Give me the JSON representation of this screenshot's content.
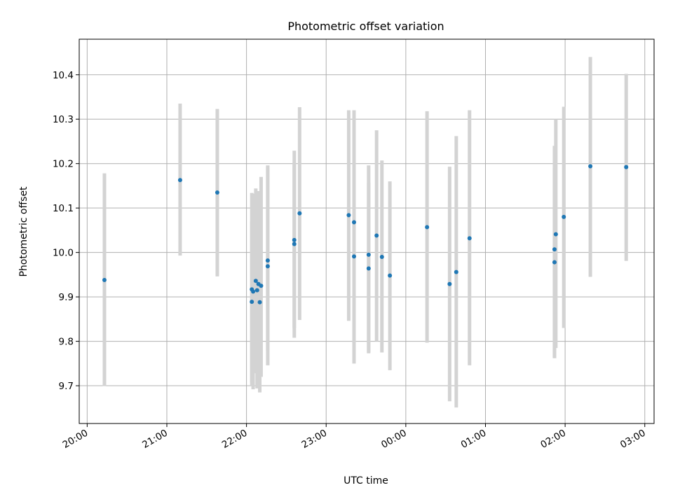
{
  "chart_data": {
    "type": "scatter",
    "title": "Photometric offset variation",
    "xlabel": "UTC time",
    "ylabel": "Photometric offset",
    "x_ticks": [
      "20:00",
      "21:00",
      "22:00",
      "23:00",
      "00:00",
      "01:00",
      "02:00",
      "03:00"
    ],
    "y_ticks": [
      "9.7",
      "9.8",
      "9.9",
      "10.0",
      "10.1",
      "10.2",
      "10.3",
      "10.4"
    ],
    "xlim": [
      "19:54",
      "03:07"
    ],
    "ylim": [
      9.615,
      10.48
    ],
    "grid": true,
    "colors": {
      "point": "#1f77b4",
      "errorbar": "#d3d3d3",
      "grid": "#b0b0b0"
    },
    "points": [
      {
        "x": "20:13",
        "y": 9.938,
        "lo": 9.699,
        "hi": 10.178
      },
      {
        "x": "21:10",
        "y": 10.163,
        "lo": 9.993,
        "hi": 10.335
      },
      {
        "x": "21:38",
        "y": 10.135,
        "lo": 9.946,
        "hi": 10.323
      },
      {
        "x": "22:04",
        "y": 9.889,
        "lo": 9.707,
        "hi": 10.07
      },
      {
        "x": "22:04",
        "y": 9.917,
        "lo": 9.7,
        "hi": 10.134
      },
      {
        "x": "22:05",
        "y": 9.912,
        "lo": 9.692,
        "hi": 10.132
      },
      {
        "x": "22:07",
        "y": 9.936,
        "lo": 9.728,
        "hi": 10.144
      },
      {
        "x": "22:08",
        "y": 9.915,
        "lo": 9.694,
        "hi": 10.136
      },
      {
        "x": "22:09",
        "y": 9.929,
        "lo": 9.72,
        "hi": 10.138
      },
      {
        "x": "22:10",
        "y": 9.888,
        "lo": 9.685,
        "hi": 10.091
      },
      {
        "x": "22:11",
        "y": 9.925,
        "lo": 9.72,
        "hi": 10.17
      },
      {
        "x": "22:16",
        "y": 9.982,
        "lo": 9.78,
        "hi": 10.196
      },
      {
        "x": "22:16",
        "y": 9.969,
        "lo": 9.746,
        "hi": 10.192
      },
      {
        "x": "22:36",
        "y": 10.028,
        "lo": 9.808,
        "hi": 10.229
      },
      {
        "x": "22:36",
        "y": 10.019,
        "lo": 9.83,
        "hi": 10.2
      },
      {
        "x": "22:40",
        "y": 10.088,
        "lo": 9.848,
        "hi": 10.327
      },
      {
        "x": "23:17",
        "y": 10.084,
        "lo": 9.846,
        "hi": 10.32
      },
      {
        "x": "23:21",
        "y": 10.068,
        "lo": 9.82,
        "hi": 10.233
      },
      {
        "x": "23:21",
        "y": 9.991,
        "lo": 9.75,
        "hi": 10.32
      },
      {
        "x": "23:32",
        "y": 9.995,
        "lo": 9.773,
        "hi": 10.196
      },
      {
        "x": "23:32",
        "y": 9.964,
        "lo": 9.775,
        "hi": 10.157
      },
      {
        "x": "23:38",
        "y": 10.038,
        "lo": 9.8,
        "hi": 10.275
      },
      {
        "x": "23:42",
        "y": 9.99,
        "lo": 9.775,
        "hi": 10.207
      },
      {
        "x": "23:48",
        "y": 9.948,
        "lo": 9.735,
        "hi": 10.16
      },
      {
        "x": "00:16",
        "y": 10.057,
        "lo": 9.797,
        "hi": 10.318
      },
      {
        "x": "00:33",
        "y": 9.929,
        "lo": 9.665,
        "hi": 10.193
      },
      {
        "x": "00:38",
        "y": 9.956,
        "lo": 9.651,
        "hi": 10.262
      },
      {
        "x": "00:48",
        "y": 10.032,
        "lo": 9.746,
        "hi": 10.32
      },
      {
        "x": "01:52",
        "y": 10.007,
        "lo": 9.762,
        "hi": 10.24
      },
      {
        "x": "01:52",
        "y": 9.978,
        "lo": 9.764,
        "hi": 10.19
      },
      {
        "x": "01:53",
        "y": 10.041,
        "lo": 9.785,
        "hi": 10.3
      },
      {
        "x": "01:59",
        "y": 10.08,
        "lo": 9.83,
        "hi": 10.328
      },
      {
        "x": "02:19",
        "y": 10.194,
        "lo": 9.945,
        "hi": 10.44
      },
      {
        "x": "02:46",
        "y": 10.192,
        "lo": 9.981,
        "hi": 10.402
      }
    ]
  }
}
